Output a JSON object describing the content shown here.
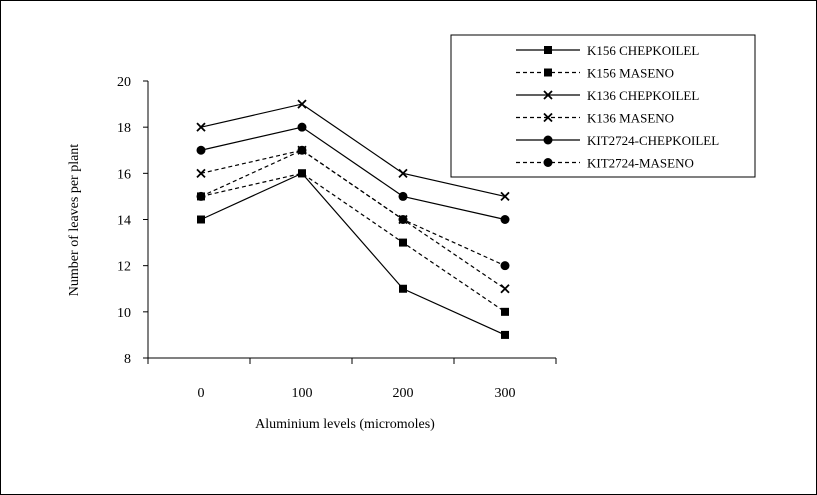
{
  "chart_data": {
    "type": "line",
    "title": "",
    "xlabel": "Aluminium levels (micromoles)",
    "ylabel": "Number of leaves per plant",
    "x": [
      0,
      100,
      200,
      300
    ],
    "x_tick_labels": [
      "0",
      "100",
      "200",
      "300"
    ],
    "ylim": [
      8,
      20
    ],
    "y_ticks": [
      8,
      10,
      12,
      14,
      16,
      18,
      20
    ],
    "grid": false,
    "legend_position": "top-right",
    "series": [
      {
        "name": "K156 CHEPKOILEL",
        "values": [
          14,
          16,
          11,
          9
        ],
        "marker": "square",
        "line": "solid"
      },
      {
        "name": "K156 MASENO",
        "values": [
          15,
          16,
          13,
          10
        ],
        "marker": "square",
        "line": "dashed"
      },
      {
        "name": "K136 CHEPKOILEL",
        "values": [
          18,
          19,
          16,
          15
        ],
        "marker": "x",
        "line": "solid"
      },
      {
        "name": "K136 MASENO",
        "values": [
          16,
          17,
          14,
          11
        ],
        "marker": "x",
        "line": "dashed"
      },
      {
        "name": "KIT2724-CHEPKOILEL",
        "values": [
          17,
          18,
          15,
          14
        ],
        "marker": "circle",
        "line": "solid"
      },
      {
        "name": "KIT2724-MASENO",
        "values": [
          15,
          17,
          14,
          12
        ],
        "marker": "circle",
        "line": "dashed"
      }
    ]
  }
}
